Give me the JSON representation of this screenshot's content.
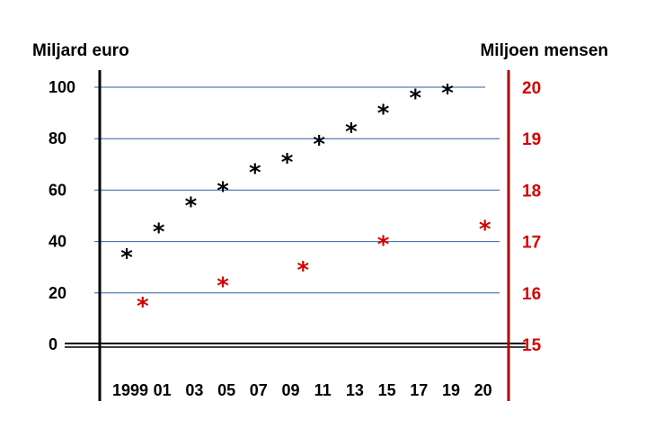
{
  "chart_data": {
    "type": "scatter",
    "title": "",
    "marker": "*",
    "left_axis": {
      "label": "Miljard euro",
      "ticks": [
        0,
        20,
        40,
        60,
        80,
        100
      ],
      "tick_labels": [
        "0",
        "20",
        "40",
        "60",
        "80",
        "100"
      ],
      "ylim": [
        0,
        100
      ],
      "color": "#000000"
    },
    "right_axis": {
      "label": "Miljoen mensen",
      "ticks": [
        15,
        16,
        17,
        18,
        19,
        20
      ],
      "tick_labels": [
        "15",
        "16",
        "17",
        "18",
        "19",
        "20"
      ],
      "ylim": [
        15,
        20
      ],
      "color": "#b00000"
    },
    "x_axis": {
      "tick_labels": [
        "1999",
        "01",
        "03",
        "05",
        "07",
        "09",
        "11",
        "13",
        "15",
        "17",
        "19",
        "20"
      ]
    },
    "grid": true,
    "grid_color": "#2e5fa8",
    "series": [
      {
        "axis": "left",
        "color": "#000000",
        "points": [
          {
            "x": 1999,
            "y": 35
          },
          {
            "x": 2001,
            "y": 45
          },
          {
            "x": 2003,
            "y": 55
          },
          {
            "x": 2005,
            "y": 61
          },
          {
            "x": 2007,
            "y": 68
          },
          {
            "x": 2009,
            "y": 72
          },
          {
            "x": 2011,
            "y": 79
          },
          {
            "x": 2013,
            "y": 84
          },
          {
            "x": 2015,
            "y": 91
          },
          {
            "x": 2017,
            "y": 97
          },
          {
            "x": 2019,
            "y": 99
          }
        ]
      },
      {
        "axis": "right",
        "color": "#d40000",
        "points": [
          {
            "x": 2000,
            "y": 15.8
          },
          {
            "x": 2005,
            "y": 16.2
          },
          {
            "x": 2010,
            "y": 16.5
          },
          {
            "x": 2015,
            "y": 17.0
          },
          {
            "x": 2020,
            "y": 17.3
          }
        ]
      }
    ]
  }
}
